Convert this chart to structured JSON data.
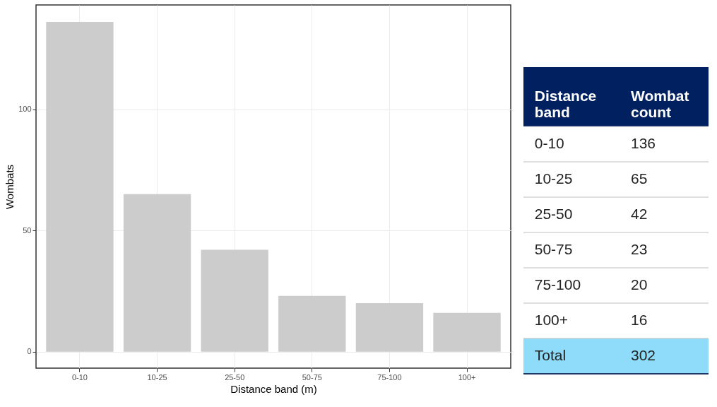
{
  "chart_data": [
    {
      "type": "bar",
      "xlabel": "Distance band (m)",
      "ylabel": "Wombats",
      "categories": [
        "0-10",
        "10-25",
        "25-50",
        "50-75",
        "75-100",
        "100+"
      ],
      "values": [
        136,
        65,
        42,
        23,
        20,
        16
      ],
      "color": "#cccccc",
      "ylim": [
        -6.8,
        143
      ],
      "yticks": [
        0,
        50,
        100
      ],
      "grid": true
    },
    {
      "type": "other",
      "annotations": [
        "Distance band",
        "Wombat count",
        "0-10",
        "136",
        "10-25",
        "65",
        "25-50",
        "42",
        "50-75",
        "23",
        "75-100",
        "20",
        "100+",
        "16",
        "Total",
        "302"
      ]
    }
  ]
}
